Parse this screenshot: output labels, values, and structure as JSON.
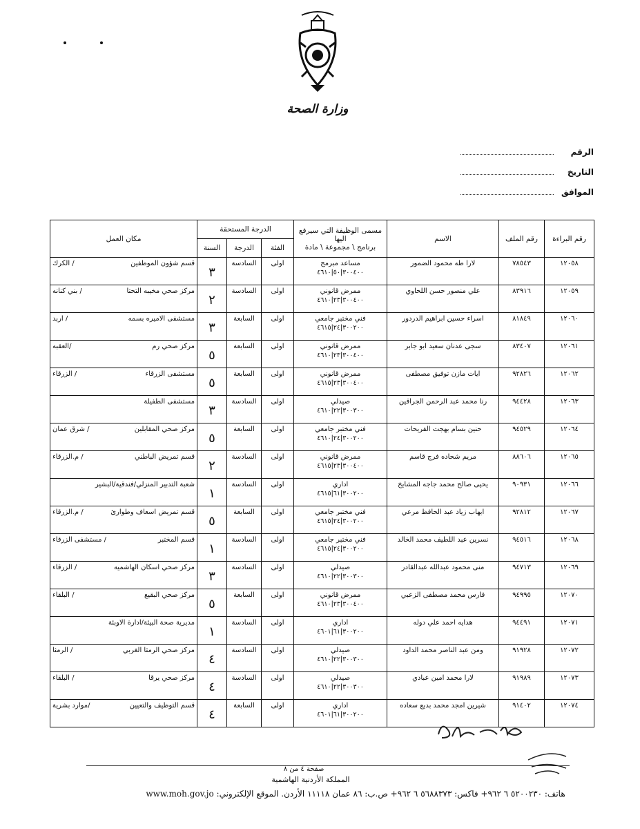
{
  "header": {
    "ministry_name": "وزارة الصحة",
    "fields": [
      {
        "label": "الرقم"
      },
      {
        "label": "التاريخ"
      },
      {
        "label": "الموافق"
      }
    ]
  },
  "table": {
    "headers": {
      "seq": "رقم البراءة",
      "file": "رقم الملف",
      "name": "الاسم",
      "job": "مسمى الوظيفة التي سيرفع اليها",
      "job_sub": "برنامج \\ مجموعة \\ مادة",
      "grade_group": "الدرجة المستحقة",
      "category": "الفئة",
      "grade": "الدرجة",
      "year": "السنة",
      "place": "مكان العمل"
    },
    "rows": [
      {
        "seq": "١٢٠٥٨",
        "file": "٧٨٥٤٣",
        "name": "لارا طه محمود الضمور",
        "job": "مساعد مبرمج",
        "code": "٣٠٠٤٠٠|٥٠|٤٦١٠",
        "category": "اولى",
        "grade": "السادسة",
        "year": "٣",
        "place": "قسم شؤون الموظفين",
        "region": "/ الكرك"
      },
      {
        "seq": "١٢٠٥٩",
        "file": "٨٣٩١٦",
        "name": "علي منصور حسن اللحاوي",
        "job": "ممرض قانوني",
        "code": "٣٠٠٤٠٠|٢٣|٤٦١٠",
        "category": "اولى",
        "grade": "السادسة",
        "year": "٢",
        "place": "مركز صحي مخيبه التحتا",
        "region": "/ بني كنانه"
      },
      {
        "seq": "١٢٠٦٠",
        "file": "٨١٨٤٩",
        "name": "اسراء حسين ابراهيم الدردور",
        "job": "فني مختبر جامعي",
        "code": "٣٠٠٢٠٠|٢٤|٤٦١٥",
        "category": "اولى",
        "grade": "السابعة",
        "year": "٣",
        "place": "مستشفى الاميره بسمه",
        "region": "/ اربد"
      },
      {
        "seq": "١٢٠٦١",
        "file": "٨٣٤٠٧",
        "name": "سجى عدنان سعيد ابو جابر",
        "job": "ممرض قانوني",
        "code": "٣٠٠٤٠٠|٢٣|٤٦١٠",
        "category": "اولى",
        "grade": "السابعة",
        "year": "٥",
        "place": "مركز صحي رم",
        "region": "/العقبه"
      },
      {
        "seq": "١٢٠٦٢",
        "file": "٩٢٨٢٦",
        "name": "ايات مازن توفيق مصطفى",
        "job": "ممرض قانوني",
        "code": "٣٠٠٤٠٠|٢٣|٤٦١٥",
        "category": "اولى",
        "grade": "السابعة",
        "year": "٥",
        "place": "مستشفى الزرقاء",
        "region": "/ الزرقاء"
      },
      {
        "seq": "١٢٠٦٣",
        "file": "٩٤٤٢٨",
        "name": "رنا محمد عبد الرحمن الجراقين",
        "job": "صيدلي",
        "code": "٣٠٠٣٠٠|٢٢|٤٦١٠",
        "category": "اولى",
        "grade": "السادسة",
        "year": "٣",
        "place": "مستشفى الطفيلة",
        "region": ""
      },
      {
        "seq": "١٢٠٦٤",
        "file": "٩٤٥٢٩",
        "name": "حنين بسام بهجت الفريحات",
        "job": "فني مختبر جامعي",
        "code": "٣٠٠٢٠٠|٢٤|٤٦١٠",
        "category": "اولى",
        "grade": "السابعة",
        "year": "٥",
        "place": "مركز صحي المقابلين",
        "region": "/ شرق عمان"
      },
      {
        "seq": "١٢٠٦٥",
        "file": "٨٨٦٠٦",
        "name": "مريم شحاده فرج قاسم",
        "job": "ممرض قانوني",
        "code": "٣٠٠٤٠٠|٢٣|٤٦١٥",
        "category": "اولى",
        "grade": "السادسة",
        "year": "٢",
        "place": "قسم تمريض الباطني",
        "region": "/ م.الزرقاء"
      },
      {
        "seq": "١٢٠٦٦",
        "file": "٩٠٩٣١",
        "name": "يحيى صالح محمد جاجه المشايخ",
        "job": "اداري",
        "code": "٣٠٠٢٠٠|٦١|٤٦١٥",
        "category": "اولى",
        "grade": "السادسة",
        "year": "١",
        "place": "شعبة التدبير المنزلي/فندقية/البشير",
        "region": ""
      },
      {
        "seq": "١٢٠٦٧",
        "file": "٩٢٨١٢",
        "name": "ايهاب زياد عبد الحافظ مرعي",
        "job": "فني مختبر جامعي",
        "code": "٣٠٠٢٠٠|٢٤|٤٦١٥",
        "category": "اولى",
        "grade": "السابعة",
        "year": "٥",
        "place": "قسم تمريض اسعاف وطوارئ",
        "region": "/ م.الزرقاء"
      },
      {
        "seq": "١٢٠٦٨",
        "file": "٩٤٥١٦",
        "name": "نسرين عبد اللطيف محمد الخالد",
        "job": "فني مختبر جامعي",
        "code": "٣٠٠٢٠٠|٢٤|٤٦١٥",
        "category": "اولى",
        "grade": "السادسة",
        "year": "١",
        "place": "قسم المختبر",
        "region": "/ مستشفى الزرقاء"
      },
      {
        "seq": "١٢٠٦٩",
        "file": "٩٤٧١٣",
        "name": "منى محمود عبدالله عبدالقادر",
        "job": "صيدلي",
        "code": "٣٠٠٣٠٠|٢٢|٤٦١٠",
        "category": "اولى",
        "grade": "السادسة",
        "year": "٣",
        "place": "مركز صحي اسكان الهاشميه",
        "region": "/ الزرقاء"
      },
      {
        "seq": "١٢٠٧٠",
        "file": "٩٤٩٩٥",
        "name": "فارس محمد مصطفى الزعبي",
        "job": "ممرض قانوني",
        "code": "٣٠٠٤٠٠|٢٣|٤٦١٠",
        "category": "اولى",
        "grade": "السابعة",
        "year": "٥",
        "place": "مركز صحي البقيع",
        "region": "/ البلقاء"
      },
      {
        "seq": "١٢٠٧١",
        "file": "٩٤٤٩١",
        "name": "هدايه احمد علي دوله",
        "job": "اداري",
        "code": "٣٠٠٢٠٠|٦١|٤٦٠١",
        "category": "اولى",
        "grade": "السادسة",
        "year": "١",
        "place": "مديرية صحة البيئة/ادارة الاوبئة",
        "region": ""
      },
      {
        "seq": "١٢٠٧٢",
        "file": "٩١٩٢٨",
        "name": "ومن عبد الناصر محمد الداود",
        "job": "صيدلي",
        "code": "٣٠٠٣٠٠|٢٢|٤٦١٠",
        "category": "اولى",
        "grade": "السادسة",
        "year": "٤",
        "place": "مركز صحي الرمثا الغربي",
        "region": "/ الرمثا"
      },
      {
        "seq": "١٢٠٧٣",
        "file": "٩١٩٨٩",
        "name": "لارا محمد امين عبادي",
        "job": "صيدلي",
        "code": "٣٠٠٣٠٠|٢٢|٤٦١٠",
        "category": "اولى",
        "grade": "السادسة",
        "year": "٤",
        "place": "مركز صحي يرقا",
        "region": "/ البلقاء"
      },
      {
        "seq": "١٢٠٧٤",
        "file": "٩١٤٠٢",
        "name": "شيرين امجد محمد بديع سعاده",
        "job": "اداري",
        "code": "٣٠٠٢٠٠|٦١|٤٦٠١",
        "category": "اولى",
        "grade": "السابعة",
        "year": "٤",
        "place": "قسم التوظيف والتعيين",
        "region": "/موارد بشرية"
      }
    ]
  },
  "footer": {
    "page": "صفحة ٤ من ٨",
    "kingdom": "المملكة الأردنية الهاشمية",
    "contact": "هاتف: ٥٢٠٠٢٣٠ ٦ ٩٦٢+ فاكس: ٥٦٨٨٣٧٣ ٦ ٩٦٢+ ص.ب: ٨٦ عمان ١١١١٨ الأردن. الموقع الإلكتروني: www.moh.gov.jo"
  }
}
